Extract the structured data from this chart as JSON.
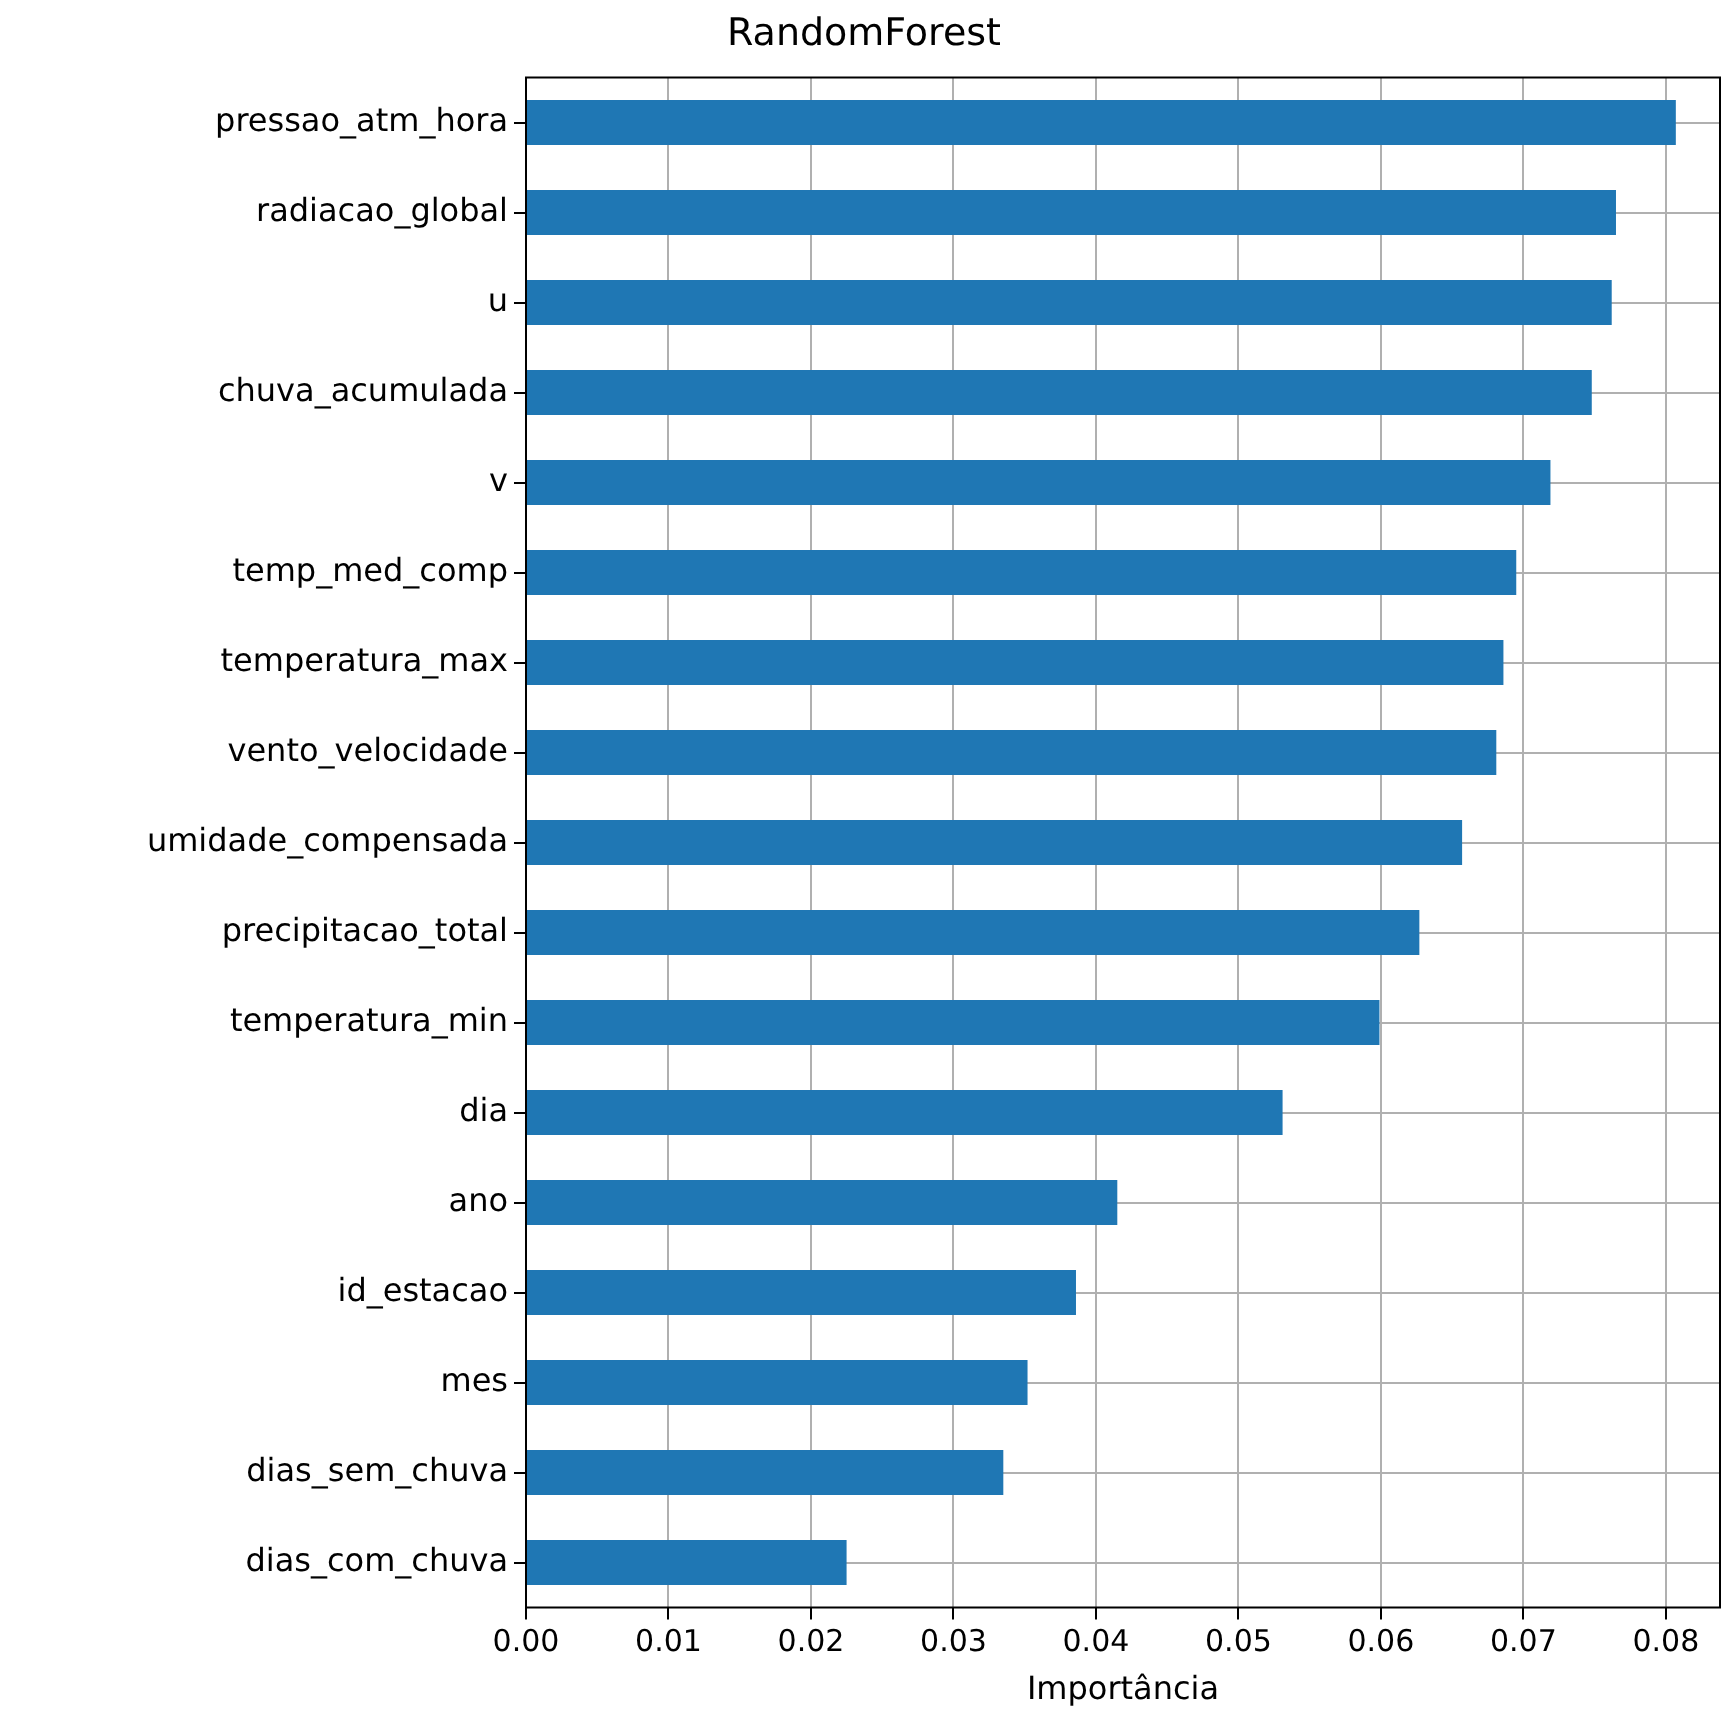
{
  "chart_data": {
    "type": "bar",
    "orientation": "horizontal",
    "title": "RandomForest",
    "xlabel": "Importância",
    "categories": [
      "pressao_atm_hora",
      "radiacao_global",
      "u",
      "chuva_acumulada",
      "v",
      "temp_med_comp",
      "temperatura_max",
      "vento_velocidade",
      "umidade_compensada",
      "precipitacao_total",
      "temperatura_min",
      "dia",
      "ano",
      "id_estacao",
      "mes",
      "dias_sem_chuva",
      "dias_com_chuva"
    ],
    "values": [
      0.0807,
      0.0765,
      0.0762,
      0.0748,
      0.0719,
      0.0695,
      0.0686,
      0.0681,
      0.0657,
      0.0627,
      0.0599,
      0.0531,
      0.0415,
      0.0386,
      0.0352,
      0.0335,
      0.0225
    ],
    "color": "#1f77b4",
    "xlim": [
      0,
      0.0838
    ],
    "xticks": [
      {
        "value": 0,
        "label": "0.00"
      },
      0.01,
      0.02,
      0.03,
      0.04,
      0.05,
      0.06,
      0.07,
      0.08
    ],
    "grid": true,
    "legend": false
  }
}
